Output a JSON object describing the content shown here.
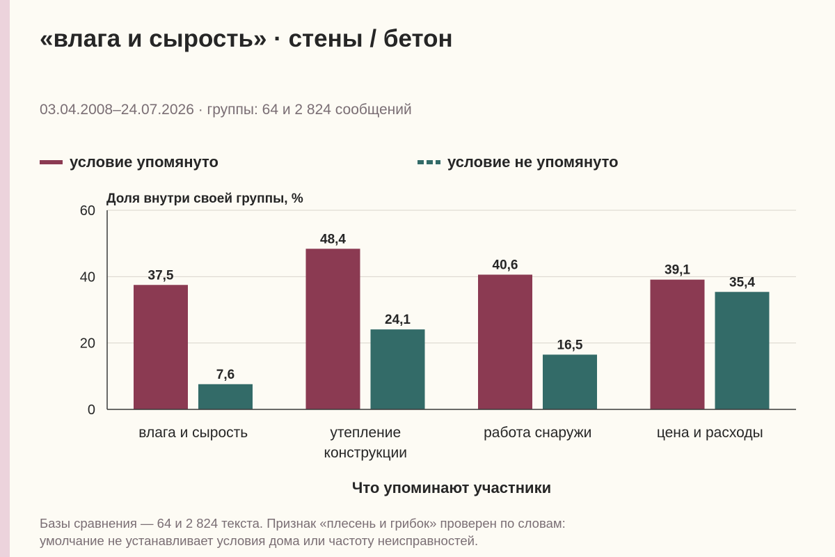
{
  "title": "«влага и сырость» · стены / бетон",
  "subtitle": "03.04.2008–24.07.2026 · группы: 64 и 2 824 сообщений",
  "footnote": {
    "line1": "Базы сравнения — 64 и 2 824 текста. Признак «плесень и грибок» проверен по словам:",
    "line2": "умолчание не устанавливает условия дома или частоту неисправностей."
  },
  "colors": {
    "mentioned": "#8b3a52",
    "not_mentioned": "#336b68",
    "grid": "#d9d4cc",
    "axis": "#3a3a3a",
    "text": "#262626",
    "muted": "#7a6e74",
    "accent_strip": "#ecd3dc",
    "background": "#fdfbf4"
  },
  "chart_data": {
    "type": "bar",
    "title": "",
    "xlabel": "Что упоминают участники",
    "ylabel": "Доля внутри своей группы, %",
    "ylim": [
      0,
      60
    ],
    "yticks": [
      0,
      20,
      40,
      60
    ],
    "grid": true,
    "legend_position": "top",
    "categories": [
      [
        "влага и сырость"
      ],
      [
        "утепление",
        "конструкции"
      ],
      [
        "работа снаружи"
      ],
      [
        "цена и расходы"
      ]
    ],
    "series": [
      {
        "name": "условие упомянуто",
        "color": "#8b3a52",
        "values": [
          37.5,
          48.4,
          40.6,
          39.1
        ],
        "labels": [
          "37,5",
          "48,4",
          "40,6",
          "39,1"
        ]
      },
      {
        "name": "условие не упомянуто",
        "color": "#336b68",
        "values": [
          7.6,
          24.1,
          16.5,
          35.4
        ],
        "labels": [
          "7,6",
          "24,1",
          "16,5",
          "35,4"
        ]
      }
    ]
  }
}
